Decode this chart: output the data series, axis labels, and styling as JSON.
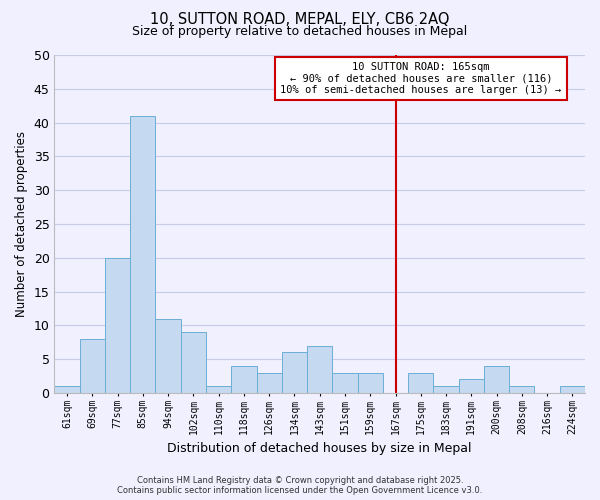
{
  "title1": "10, SUTTON ROAD, MEPAL, ELY, CB6 2AQ",
  "title2": "Size of property relative to detached houses in Mepal",
  "xlabel": "Distribution of detached houses by size in Mepal",
  "ylabel": "Number of detached properties",
  "bar_labels": [
    "61sqm",
    "69sqm",
    "77sqm",
    "85sqm",
    "94sqm",
    "102sqm",
    "110sqm",
    "118sqm",
    "126sqm",
    "134sqm",
    "143sqm",
    "151sqm",
    "159sqm",
    "167sqm",
    "175sqm",
    "183sqm",
    "191sqm",
    "200sqm",
    "208sqm",
    "216sqm",
    "224sqm"
  ],
  "bar_values": [
    1,
    8,
    20,
    41,
    11,
    9,
    1,
    4,
    3,
    6,
    7,
    3,
    3,
    0,
    3,
    1,
    2,
    4,
    1,
    0,
    1
  ],
  "bar_color": "#c5d9f0",
  "bar_edge_color": "#6baed6",
  "vline_x_index": 13.0,
  "vline_color": "#cc0000",
  "annotation_title": "10 SUTTON ROAD: 165sqm",
  "annotation_line1": "← 90% of detached houses are smaller (116)",
  "annotation_line2": "10% of semi-detached houses are larger (13) →",
  "annotation_box_color": "#ffffff",
  "annotation_box_edge": "#cc0000",
  "background_color": "#f0f0ff",
  "grid_color": "#c8cce8",
  "footer1": "Contains HM Land Registry data © Crown copyright and database right 2025.",
  "footer2": "Contains public sector information licensed under the Open Government Licence v3.0.",
  "ylim": [
    0,
    50
  ],
  "yticks": [
    0,
    5,
    10,
    15,
    20,
    25,
    30,
    35,
    40,
    45,
    50
  ]
}
